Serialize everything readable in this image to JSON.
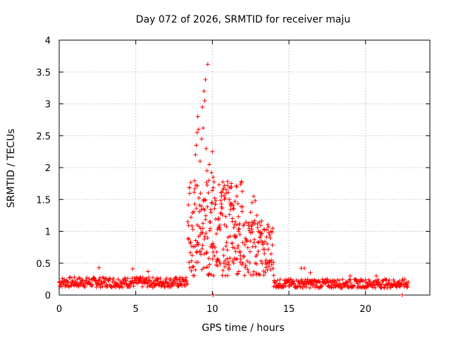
{
  "chart_data": {
    "type": "scatter",
    "title": "Day 072 of 2026, SRMTID for receiver maju",
    "xlabel": "GPS time / hours",
    "ylabel": "SRMTID / TECUs",
    "xlim": [
      0,
      24.2
    ],
    "ylim": [
      0,
      4
    ],
    "xticks": [
      0,
      5,
      10,
      15,
      20
    ],
    "xtick_labels": [
      "0",
      "5",
      "10",
      "15",
      "20"
    ],
    "yticks": [
      0,
      0.5,
      1,
      1.5,
      2,
      2.5,
      3,
      3.5,
      4
    ],
    "ytick_labels": [
      "0",
      "0.5",
      "1",
      "1.5",
      "2",
      "2.5",
      "3",
      "3.5",
      "4"
    ],
    "grid": true,
    "marker": "+",
    "colors": {
      "series": "#ff0000",
      "grid": "#a0a0a0",
      "axis": "#000000"
    },
    "series": [
      {
        "name": "SRMTID",
        "segments": [
          {
            "x_start": 0.0,
            "x_end": 8.4,
            "step": 0.03,
            "baseline": 0.2,
            "spread": 0.08
          },
          {
            "x_start": 8.4,
            "x_end": 12.0,
            "step": 0.015,
            "baseline": 0.9,
            "spread": 0.6
          },
          {
            "x_start": 12.0,
            "x_end": 14.0,
            "step": 0.02,
            "baseline": 0.55,
            "spread": 0.35
          },
          {
            "x_start": 14.0,
            "x_end": 22.8,
            "step": 0.03,
            "baseline": 0.18,
            "spread": 0.07
          }
        ],
        "points": [
          [
            2.6,
            0.43
          ],
          [
            4.8,
            0.41
          ],
          [
            5.8,
            0.37
          ],
          [
            8.9,
            2.2
          ],
          [
            8.95,
            2.35
          ],
          [
            9.0,
            2.55
          ],
          [
            9.05,
            2.8
          ],
          [
            9.1,
            2.6
          ],
          [
            9.2,
            2.1
          ],
          [
            9.3,
            2.45
          ],
          [
            9.35,
            2.95
          ],
          [
            9.4,
            2.62
          ],
          [
            9.45,
            3.2
          ],
          [
            9.5,
            3.05
          ],
          [
            9.55,
            3.38
          ],
          [
            9.6,
            2.3
          ],
          [
            9.65,
            1.95
          ],
          [
            9.7,
            3.62
          ],
          [
            9.8,
            2.05
          ],
          [
            9.95,
            1.92
          ],
          [
            10.0,
            2.25
          ],
          [
            10.05,
            1.85
          ],
          [
            10.6,
            1.55
          ],
          [
            10.7,
            1.65
          ],
          [
            10.8,
            1.72
          ],
          [
            10.9,
            1.6
          ],
          [
            11.0,
            1.78
          ],
          [
            11.1,
            1.5
          ],
          [
            11.2,
            1.42
          ],
          [
            11.3,
            1.2
          ],
          [
            11.4,
            1.35
          ],
          [
            11.5,
            1.15
          ],
          [
            11.6,
            1.1
          ],
          [
            11.7,
            1.0
          ],
          [
            11.8,
            0.95
          ],
          [
            12.5,
            1.3
          ],
          [
            12.6,
            1.45
          ],
          [
            12.7,
            1.55
          ],
          [
            12.8,
            1.48
          ],
          [
            12.9,
            1.25
          ],
          [
            13.0,
            1.0
          ],
          [
            13.1,
            0.9
          ],
          [
            13.2,
            0.85
          ],
          [
            13.3,
            0.8
          ],
          [
            13.4,
            0.65
          ],
          [
            13.5,
            0.55
          ],
          [
            13.6,
            0.5
          ],
          [
            13.7,
            0.45
          ],
          [
            15.8,
            0.42
          ],
          [
            16.0,
            0.42
          ],
          [
            16.4,
            0.35
          ],
          [
            19.0,
            0.3
          ],
          [
            20.7,
            0.3
          ],
          [
            10.05,
            0.0
          ],
          [
            22.4,
            0.0
          ]
        ]
      }
    ]
  }
}
